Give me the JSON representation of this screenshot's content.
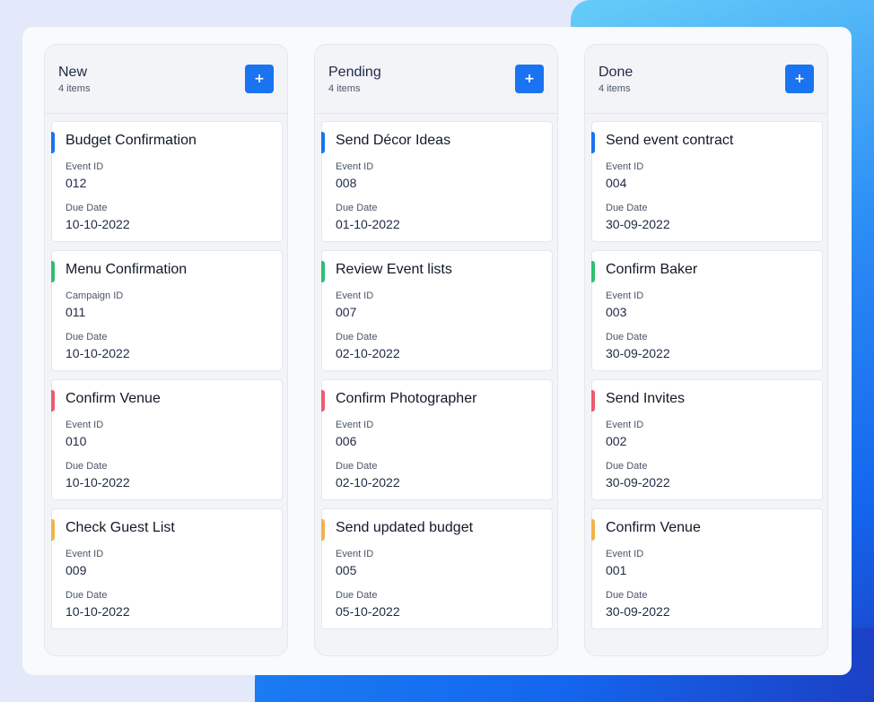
{
  "colors": {
    "accent_blue": "#1a73f0",
    "accent_green": "#2fbf71",
    "accent_red": "#ee5a6f",
    "accent_orange": "#f2b24c"
  },
  "board": {
    "add_icon": "plus-icon",
    "add_label": "+",
    "columns": [
      {
        "title": "New",
        "count": "4 items",
        "cards": [
          {
            "title": "Budget Confirmation",
            "id_label": "Event ID",
            "id_value": "012",
            "date_label": "Due Date",
            "date_value": "10-10-2022",
            "accent": "#1a73f0"
          },
          {
            "title": "Menu Confirmation",
            "id_label": "Campaign ID",
            "id_value": "011",
            "date_label": "Due Date",
            "date_value": "10-10-2022",
            "accent": "#2fbf71"
          },
          {
            "title": "Confirm Venue",
            "id_label": "Event ID",
            "id_value": "010",
            "date_label": "Due Date",
            "date_value": "10-10-2022",
            "accent": "#ee5a6f"
          },
          {
            "title": "Check Guest List",
            "id_label": "Event ID",
            "id_value": "009",
            "date_label": "Due Date",
            "date_value": "10-10-2022",
            "accent": "#f2b24c"
          }
        ]
      },
      {
        "title": "Pending",
        "count": "4 items",
        "cards": [
          {
            "title": "Send Décor Ideas",
            "id_label": "Event ID",
            "id_value": "008",
            "date_label": "Due Date",
            "date_value": "01-10-2022",
            "accent": "#1a73f0"
          },
          {
            "title": "Review Event lists",
            "id_label": "Event ID",
            "id_value": "007",
            "date_label": "Due Date",
            "date_value": "02-10-2022",
            "accent": "#2fbf71"
          },
          {
            "title": "Confirm Photographer",
            "id_label": "Event ID",
            "id_value": "006",
            "date_label": "Due Date",
            "date_value": "02-10-2022",
            "accent": "#ee5a6f"
          },
          {
            "title": "Send updated budget",
            "id_label": "Event ID",
            "id_value": "005",
            "date_label": "Due Date",
            "date_value": "05-10-2022",
            "accent": "#f2b24c"
          }
        ]
      },
      {
        "title": "Done",
        "count": "4 items",
        "cards": [
          {
            "title": "Send event contract",
            "id_label": "Event ID",
            "id_value": "004",
            "date_label": "Due Date",
            "date_value": "30-09-2022",
            "accent": "#1a73f0"
          },
          {
            "title": "Confirm Baker",
            "id_label": "Event ID",
            "id_value": "003",
            "date_label": "Due Date",
            "date_value": "30-09-2022",
            "accent": "#2fbf71"
          },
          {
            "title": "Send Invites",
            "id_label": "Event ID",
            "id_value": "002",
            "date_label": "Due Date",
            "date_value": "30-09-2022",
            "accent": "#ee5a6f"
          },
          {
            "title": "Confirm Venue",
            "id_label": "Event ID",
            "id_value": "001",
            "date_label": "Due Date",
            "date_value": "30-09-2022",
            "accent": "#f2b24c"
          }
        ]
      }
    ]
  }
}
